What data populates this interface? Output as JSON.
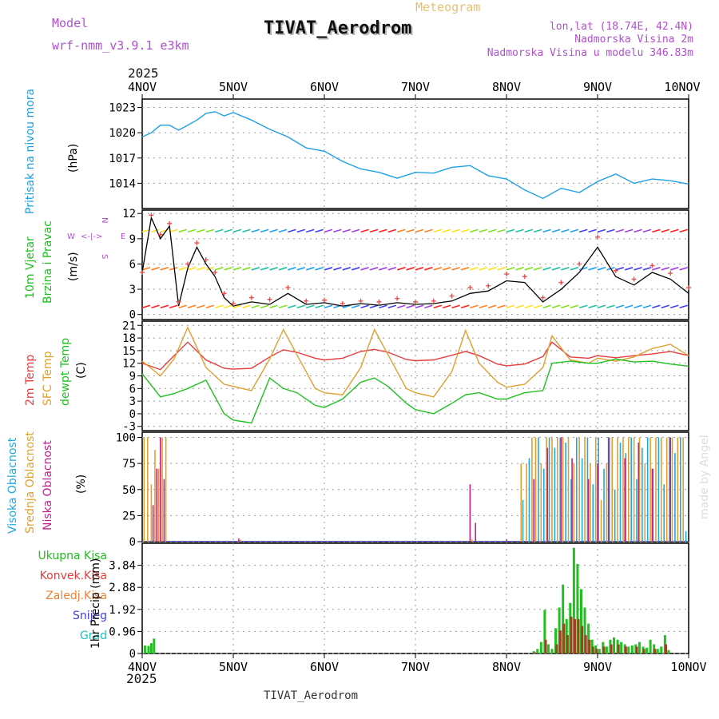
{
  "header": {
    "title": "TIVAT_Aerodrom",
    "meteogram_label": "Meteogram",
    "model_label": "Model",
    "model_name": "wrf-nmm_v3.9.1  e3km",
    "lonlat": "lon,lat (18.74E, 42.4N)",
    "altitude": "Nadmorska Visina 2m",
    "model_altitude": "Nadmorska Visina u modelu 346.83m",
    "year_top": "2025",
    "year_bottom": "2025",
    "footer_title": "TIVAT_Aerodrom",
    "credit": "made by Angel"
  },
  "colors": {
    "pressure": "#1ea0e6",
    "title_purple": "#b050d0",
    "orange": "#e8c070",
    "temp2m": "#e83c3c",
    "sfc": "#e0a030",
    "dew": "#20c020",
    "cloud_high": "#20a8e0",
    "cloud_mid": "#e0a030",
    "cloud_low": "#c0208c",
    "precip_total": "#20c020",
    "precip_conv": "#e83c3c",
    "precip_frz": "#f08030",
    "snow": "#4040e0",
    "grad": "#20c0c0"
  },
  "chart_data": [
    {
      "id": "pressure",
      "type": "line",
      "ylabel_line1": "Pritisak na nivou mora",
      "ylabel_unit": "(hPa)",
      "yticks": [
        1014,
        1017,
        1020,
        1023
      ],
      "ylim": [
        1011,
        1024
      ],
      "x": [
        0,
        0.1,
        0.2,
        0.3,
        0.4,
        0.5,
        0.6,
        0.7,
        0.8,
        0.9,
        1.0,
        1.2,
        1.4,
        1.6,
        1.8,
        2.0,
        2.2,
        2.4,
        2.6,
        2.8,
        3.0,
        3.2,
        3.4,
        3.6,
        3.8,
        4.0,
        4.2,
        4.4,
        4.6,
        4.8,
        5.0,
        5.2,
        5.4,
        5.6,
        5.8,
        6.0
      ],
      "values": [
        1019.5,
        1020,
        1020.9,
        1020.9,
        1020.3,
        1020.9,
        1021.5,
        1022.3,
        1022.5,
        1022,
        1022.4,
        1021.5,
        1020.4,
        1019.5,
        1018.2,
        1017.8,
        1016.6,
        1015.7,
        1015.3,
        1014.6,
        1015.3,
        1015.2,
        1015.9,
        1016.1,
        1014.9,
        1014.5,
        1013.2,
        1012.2,
        1013.4,
        1012.9,
        1014.2,
        1015.1,
        1014.0,
        1014.5,
        1014.3,
        1013.9
      ]
    },
    {
      "id": "wind",
      "type": "line",
      "ylabel_line1": "10m Vjetar",
      "ylabel_line2": "Brzina i Pravac",
      "ylabel_unit": "(m/s)",
      "compass": "N",
      "compass_w": "W",
      "compass_e": "E",
      "compass_s": "S",
      "yticks": [
        0,
        3,
        6,
        9,
        12
      ],
      "ylim": [
        -0.6,
        12.4
      ],
      "barb_rows": [
        0.8,
        5.3,
        9.8
      ],
      "x": [
        0,
        0.1,
        0.2,
        0.3,
        0.4,
        0.5,
        0.6,
        0.7,
        0.8,
        0.9,
        1.0,
        1.2,
        1.4,
        1.6,
        1.8,
        2.0,
        2.2,
        2.4,
        2.6,
        2.8,
        3.0,
        3.2,
        3.4,
        3.6,
        3.8,
        4.0,
        4.2,
        4.4,
        4.6,
        4.8,
        5.0,
        5.2,
        5.4,
        5.6,
        5.8,
        6.0
      ],
      "values": [
        5,
        11.5,
        9,
        10.5,
        1,
        5.5,
        8,
        6,
        4.5,
        2,
        1,
        1.5,
        1.2,
        2.5,
        1.2,
        1.4,
        1.0,
        1.3,
        1.1,
        1.4,
        1.2,
        1.3,
        1.6,
        2.5,
        2.8,
        4,
        3.8,
        1.5,
        3,
        5,
        8,
        4.5,
        3.5,
        5,
        4.2,
        2.5
      ],
      "gust": [
        5,
        11.8,
        9.5,
        10.8,
        1.5,
        6,
        8.5,
        6.5,
        5,
        2.5,
        1.3,
        2,
        1.8,
        3.2,
        1.6,
        1.7,
        1.3,
        1.6,
        1.5,
        1.9,
        1.5,
        1.6,
        2.2,
        3.2,
        3.4,
        4.8,
        4.5,
        2,
        3.8,
        6,
        9.2,
        5.2,
        4.2,
        5.8,
        4.9,
        3.2
      ]
    },
    {
      "id": "temperature",
      "type": "line",
      "ylabel_line1": "2m Temp",
      "ylabel_line2": "SFC Temp",
      "ylabel_line3": "dewpt Temp",
      "ylabel_unit": "(C)",
      "yticks": [
        -3,
        0,
        3,
        6,
        9,
        12,
        15,
        18,
        21
      ],
      "ylim": [
        -4,
        22
      ],
      "x": [
        0,
        0.2,
        0.35,
        0.5,
        0.7,
        0.9,
        1.0,
        1.2,
        1.4,
        1.55,
        1.7,
        1.9,
        2.0,
        2.2,
        2.4,
        2.55,
        2.7,
        2.9,
        3.0,
        3.2,
        3.4,
        3.55,
        3.7,
        3.9,
        4.0,
        4.2,
        4.4,
        4.5,
        4.7,
        4.9,
        5.0,
        5.2,
        5.4,
        5.6,
        5.8,
        6.0
      ],
      "series": [
        {
          "name": "2m Temp",
          "values": [
            12,
            10.5,
            13.8,
            17,
            12.8,
            10.8,
            10.6,
            10.8,
            13.5,
            15.2,
            14.6,
            13.2,
            12.8,
            13.2,
            14.8,
            15.3,
            14.6,
            12.9,
            12.6,
            12.8,
            13.9,
            14.8,
            13.8,
            11.8,
            11.4,
            11.8,
            13.6,
            17.0,
            13.5,
            13.2,
            13.8,
            13.3,
            13.8,
            14.2,
            14.8,
            13.8
          ]
        },
        {
          "name": "SFC Temp",
          "values": [
            12.5,
            9,
            13,
            20.5,
            11,
            7,
            6.5,
            5.5,
            13,
            20,
            14,
            6,
            5,
            4.5,
            11,
            20,
            14,
            6,
            5,
            4,
            10,
            19.8,
            12,
            7.5,
            6.3,
            7,
            11,
            18.5,
            12.8,
            12,
            13.2,
            12.5,
            13.5,
            15.5,
            16.5,
            13.8
          ]
        },
        {
          "name": "dewpt Temp",
          "values": [
            9.5,
            4,
            4.8,
            6,
            8,
            0,
            -1.5,
            -2.2,
            8.5,
            6,
            5,
            2,
            1.5,
            3.5,
            7.5,
            8.5,
            6.5,
            2.5,
            1,
            0,
            2.5,
            4.5,
            5,
            3.5,
            3.5,
            5,
            5.5,
            12,
            12.5,
            12,
            12,
            13,
            12.3,
            12.5,
            11.8,
            11.3
          ]
        }
      ]
    },
    {
      "id": "clouds",
      "type": "bar",
      "ylabel_line1": "Visoka Oblacnost",
      "ylabel_line2": "Srednja Oblacnost",
      "ylabel_line3": "Niska Oblacnost",
      "ylabel_unit": "(%)",
      "yticks": [
        0,
        25,
        50,
        75,
        100
      ],
      "ylim": [
        0,
        105
      ],
      "series": [
        {
          "name": "Srednja",
          "x": [
            0.02,
            0.06,
            0.1,
            0.14,
            0.18,
            0.22,
            0.26,
            1.08,
            3.62,
            4.16,
            4.22,
            4.28,
            4.32,
            4.38,
            4.44,
            4.5,
            4.56,
            4.62,
            4.68,
            4.74,
            4.8,
            4.86,
            4.92,
            4.98,
            5.04,
            5.1,
            5.16,
            5.22,
            5.28,
            5.34,
            5.4,
            5.46,
            5.52,
            5.58,
            5.64,
            5.7,
            5.76,
            5.82,
            5.88,
            5.94
          ],
          "values": [
            100,
            100,
            55,
            88,
            70,
            100,
            100,
            2,
            2,
            75,
            75,
            100,
            100,
            75,
            100,
            100,
            100,
            100,
            100,
            75,
            100,
            100,
            75,
            100,
            40,
            75,
            100,
            100,
            100,
            100,
            100,
            100,
            75,
            100,
            100,
            100,
            100,
            100,
            100,
            100
          ]
        },
        {
          "name": "Visoka",
          "x": [
            4.18,
            4.25,
            4.35,
            4.41,
            4.47,
            4.53,
            4.59,
            4.65,
            4.71,
            4.77,
            4.83,
            4.89,
            4.95,
            5.01,
            5.07,
            5.13,
            5.19,
            5.25,
            5.31,
            5.37,
            5.43,
            5.49,
            5.55,
            5.61,
            5.67,
            5.73,
            5.79,
            5.85,
            5.91,
            5.97
          ],
          "values": [
            40,
            80,
            100,
            70,
            100,
            90,
            100,
            95,
            60,
            100,
            80,
            100,
            55,
            100,
            70,
            100,
            50,
            95,
            85,
            100,
            60,
            90,
            100,
            70,
            100,
            55,
            100,
            85,
            100,
            10
          ]
        },
        {
          "name": "Niska",
          "x": [
            0.12,
            0.16,
            0.2,
            0.24,
            1.06,
            3.6,
            3.66,
            4.0,
            4.3,
            4.45,
            4.6,
            4.72,
            4.9,
            5.0,
            5.12,
            5.3,
            5.45,
            5.6,
            5.8
          ],
          "values": [
            35,
            70,
            100,
            60,
            3,
            55,
            18,
            2,
            60,
            90,
            100,
            80,
            60,
            75,
            100,
            80,
            95,
            70,
            100
          ]
        }
      ]
    },
    {
      "id": "precip",
      "type": "bar",
      "ylabel_unit": "1hr Precip (mm)",
      "legend": [
        "Ukupna Kisa",
        "Konvek.Kisa",
        "Zaledj.Kisa",
        "Snijeg",
        "Grad"
      ],
      "yticks": [
        0,
        0.96,
        1.92,
        2.88,
        3.84
      ],
      "ylim": [
        0,
        4.8
      ],
      "xticks": [
        "4NOV",
        "5NOV",
        "6NOV",
        "7NOV",
        "8NOV",
        "9NOV",
        "10NOV"
      ],
      "series": [
        {
          "name": "Ukupna Kisa",
          "x": [
            0.03,
            0.07,
            0.1,
            0.13,
            4.3,
            4.34,
            4.38,
            4.42,
            4.46,
            4.5,
            4.54,
            4.58,
            4.62,
            4.66,
            4.7,
            4.74,
            4.78,
            4.82,
            4.86,
            4.9,
            4.94,
            4.98,
            5.02,
            5.06,
            5.1,
            5.14,
            5.18,
            5.22,
            5.26,
            5.3,
            5.34,
            5.38,
            5.42,
            5.46,
            5.5,
            5.54,
            5.58,
            5.62,
            5.66,
            5.7,
            5.74,
            5.78
          ],
          "values": [
            0.35,
            0.33,
            0.45,
            0.65,
            0.1,
            0.2,
            0.5,
            1.9,
            0.4,
            0.2,
            1.1,
            2.0,
            3.0,
            1.5,
            2.2,
            4.6,
            3.9,
            2.8,
            2.0,
            1.3,
            0.6,
            0.35,
            0.2,
            0.5,
            0.3,
            0.6,
            0.7,
            0.6,
            0.5,
            0.4,
            0.3,
            0.35,
            0.4,
            0.5,
            0.3,
            0.25,
            0.6,
            0.4,
            0.2,
            0.3,
            0.8,
            0.15
          ]
        },
        {
          "name": "Konvek.Kisa",
          "x": [
            4.31,
            4.43,
            4.55,
            4.59,
            4.63,
            4.67,
            4.71,
            4.75,
            4.79,
            4.83,
            4.87,
            4.91,
            4.95,
            4.99,
            5.07,
            5.15,
            5.23,
            5.31,
            5.43,
            5.51,
            5.63,
            5.75
          ],
          "values": [
            0.05,
            0.6,
            0.4,
            1.0,
            1.3,
            0.8,
            1.6,
            1.5,
            1.5,
            1.2,
            0.8,
            0.6,
            0.3,
            0.2,
            0.3,
            0.4,
            0.4,
            0.3,
            0.3,
            0.2,
            0.2,
            0.4
          ]
        }
      ]
    }
  ]
}
